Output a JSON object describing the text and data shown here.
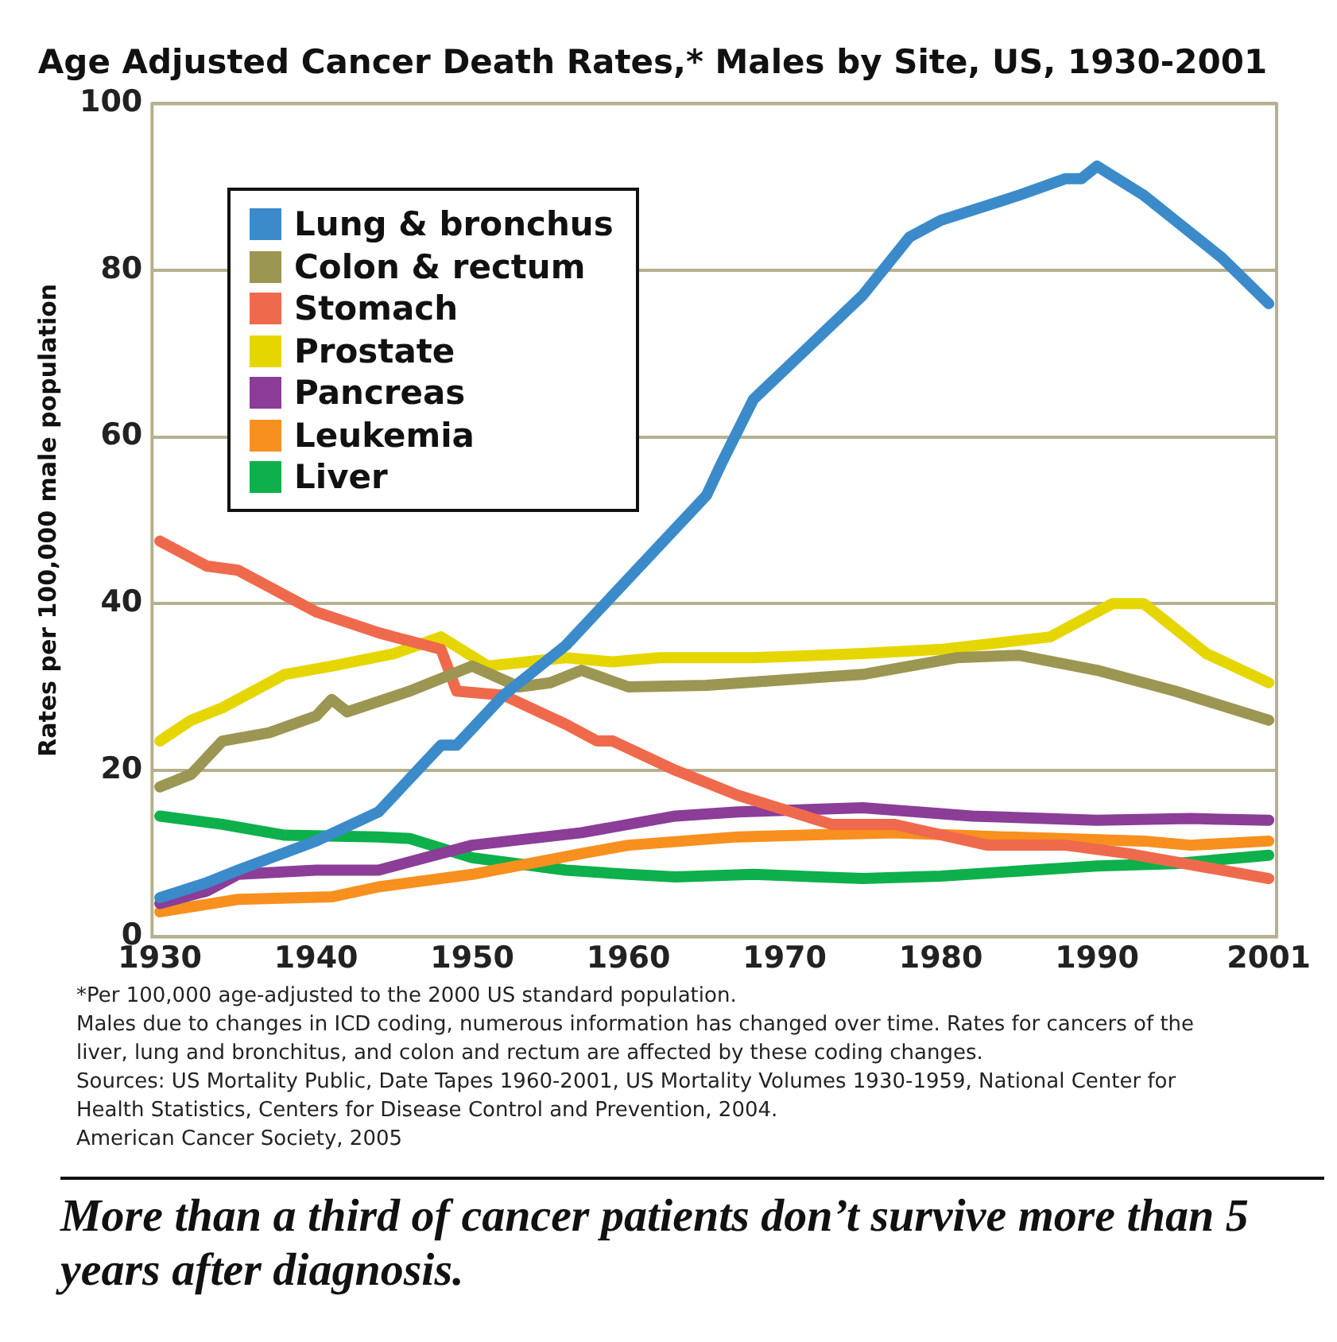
{
  "chart_data": {
    "type": "line",
    "title": "Age Adjusted Cancer Death Rates,* Males by Site, US, 1930-2001",
    "ylabel": "Rates per 100,000 male population",
    "xlim": [
      1929.5,
      2001.5
    ],
    "xticks": [
      1930,
      1940,
      1950,
      1960,
      1970,
      1980,
      1990,
      2001
    ],
    "ylim": [
      0,
      100
    ],
    "yticks": [
      0,
      20,
      40,
      60,
      80,
      100
    ],
    "grid": "y",
    "legend": "top left",
    "marker": "none",
    "line_style": "solid",
    "series": [
      {
        "name": "Lung & bronchus",
        "color": "#3b8bca",
        "x": [
          1930,
          1933,
          1935,
          1940,
          1944,
          1948,
          1949,
          1952,
          1956,
          1960,
          1965,
          1966,
          1968,
          1975,
          1978,
          1980,
          1985,
          1988,
          1989,
          1990,
          1993,
          1995,
          1998,
          2001
        ],
        "values": [
          4.7,
          6.5,
          8,
          11.5,
          15,
          23,
          23,
          29,
          35,
          43,
          53,
          57,
          64.5,
          77,
          84,
          86,
          89,
          91,
          91,
          92.5,
          89,
          86,
          81.5,
          76
        ]
      },
      {
        "name": "Colon & rectum",
        "color": "#9c9653",
        "x": [
          1930,
          1932,
          1934,
          1937,
          1940,
          1941,
          1942,
          1946,
          1950,
          1953,
          1955,
          1957,
          1960,
          1965,
          1975,
          1981,
          1985,
          1990,
          1995,
          2001
        ],
        "values": [
          18,
          19.5,
          23.5,
          24.5,
          26.5,
          28.5,
          27,
          29.5,
          32.5,
          30,
          30.5,
          32,
          30,
          30.2,
          31.5,
          33.5,
          33.8,
          32,
          29.5,
          26
        ]
      },
      {
        "name": "Stomach",
        "color": "#ef6a4c",
        "x": [
          1930,
          1933,
          1935,
          1940,
          1944,
          1948,
          1949,
          1952,
          1956,
          1958,
          1959,
          1963,
          1967,
          1973,
          1977,
          1983,
          1988,
          1992,
          2001
        ],
        "values": [
          47.5,
          44.5,
          44,
          39,
          36.5,
          34.5,
          29.5,
          29,
          25.5,
          23.5,
          23.5,
          20,
          17,
          13.5,
          13.5,
          11,
          11,
          10,
          7
        ]
      },
      {
        "name": "Prostate",
        "color": "#e6d600",
        "x": [
          1930,
          1932,
          1934,
          1938,
          1941,
          1945,
          1948,
          1951,
          1956,
          1959,
          1962,
          1968,
          1975,
          1980,
          1987,
          1991,
          1993,
          1997,
          2001
        ],
        "values": [
          23.5,
          26,
          27.5,
          31.5,
          32.5,
          34,
          36,
          32.5,
          33.5,
          33,
          33.5,
          33.5,
          34,
          34.5,
          36,
          40,
          40,
          34,
          30.5
        ]
      },
      {
        "name": "Pancreas",
        "color": "#8b3d98",
        "x": [
          1930,
          1933,
          1935,
          1940,
          1944,
          1950,
          1957,
          1963,
          1967,
          1975,
          1982,
          1990,
          1996,
          2001
        ],
        "values": [
          4,
          5.5,
          7.5,
          8,
          8,
          11,
          12.5,
          14.5,
          15,
          15.5,
          14.5,
          14,
          14.2,
          14
        ]
      },
      {
        "name": "Leukemia",
        "color": "#f7901e",
        "x": [
          1930,
          1935,
          1941,
          1944,
          1950,
          1957,
          1960,
          1967,
          1977,
          1984,
          1993,
          1996,
          2001
        ],
        "values": [
          3,
          4.5,
          4.8,
          6,
          7.5,
          10,
          11,
          12,
          12.5,
          12,
          11.5,
          11,
          11.5
        ]
      },
      {
        "name": "Liver",
        "color": "#0db04b",
        "x": [
          1930,
          1934,
          1938,
          1944,
          1946,
          1950,
          1956,
          1960,
          1963,
          1968,
          1975,
          1980,
          1990,
          1995,
          2001
        ],
        "values": [
          14.5,
          13.5,
          12.2,
          12,
          11.8,
          9.5,
          8,
          7.5,
          7.2,
          7.5,
          7,
          7.3,
          8.5,
          8.8,
          9.8
        ]
      }
    ],
    "annotations": [
      "*Per 100,000 age-adjusted to the 2000 US standard population.",
      "Males due to changes in ICD coding, numerous information has changed over time. Rates for cancers of the liver, lung and  bronchitus, and colon and rectum are affected by these coding changes.",
      "Sources: US Mortality Public, Date Tapes 1960-2001, US Mortality Volumes 1930-1959, National Center for Health Statistics, Centers for Disease Control and Prevention, 2004.",
      "American Cancer Society, 2005",
      "More than a third of cancer patients don’t survive more than 5 years after diagnosis."
    ]
  }
}
